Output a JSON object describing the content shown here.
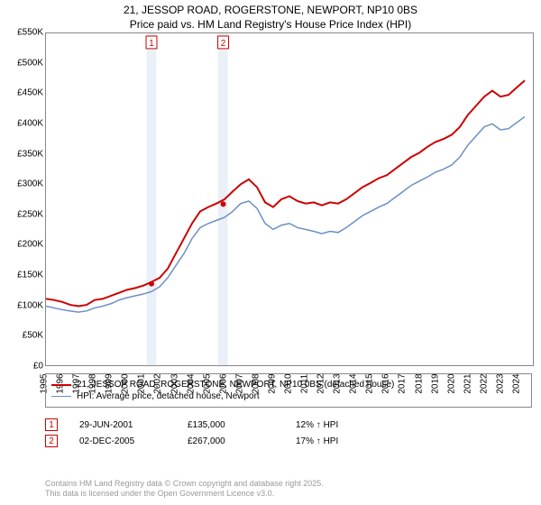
{
  "title_line1": "21, JESSOP ROAD, ROGERSTONE, NEWPORT, NP10 0BS",
  "title_line2": "Price paid vs. HM Land Registry's House Price Index (HPI)",
  "chart": {
    "type": "line",
    "background_color": "#ffffff",
    "plot_border_color": "#888888",
    "band_color": "#eaf0f8",
    "series": [
      {
        "name": "price_paid",
        "legend": "21, JESSOP ROAD, ROGERSTONE, NEWPORT, NP10 0BS (detached house)",
        "color": "#cc0000",
        "line_width": 2,
        "data": [
          [
            1995,
            110000
          ],
          [
            1995.5,
            108000
          ],
          [
            1996,
            105000
          ],
          [
            1996.5,
            100000
          ],
          [
            1997,
            98000
          ],
          [
            1997.5,
            100000
          ],
          [
            1998,
            108000
          ],
          [
            1998.5,
            110000
          ],
          [
            1999,
            115000
          ],
          [
            1999.5,
            120000
          ],
          [
            2000,
            125000
          ],
          [
            2000.5,
            128000
          ],
          [
            2001,
            132000
          ],
          [
            2001.5,
            138000
          ],
          [
            2002,
            145000
          ],
          [
            2002.5,
            160000
          ],
          [
            2003,
            185000
          ],
          [
            2003.5,
            210000
          ],
          [
            2004,
            235000
          ],
          [
            2004.5,
            255000
          ],
          [
            2005,
            262000
          ],
          [
            2005.5,
            268000
          ],
          [
            2006,
            275000
          ],
          [
            2006.5,
            288000
          ],
          [
            2007,
            300000
          ],
          [
            2007.5,
            308000
          ],
          [
            2008,
            295000
          ],
          [
            2008.5,
            270000
          ],
          [
            2009,
            262000
          ],
          [
            2009.5,
            275000
          ],
          [
            2010,
            280000
          ],
          [
            2010.5,
            272000
          ],
          [
            2011,
            268000
          ],
          [
            2011.5,
            270000
          ],
          [
            2012,
            265000
          ],
          [
            2012.5,
            270000
          ],
          [
            2013,
            268000
          ],
          [
            2013.5,
            275000
          ],
          [
            2014,
            285000
          ],
          [
            2014.5,
            295000
          ],
          [
            2015,
            302000
          ],
          [
            2015.5,
            310000
          ],
          [
            2016,
            315000
          ],
          [
            2016.5,
            325000
          ],
          [
            2017,
            335000
          ],
          [
            2017.5,
            345000
          ],
          [
            2018,
            352000
          ],
          [
            2018.5,
            362000
          ],
          [
            2019,
            370000
          ],
          [
            2019.5,
            375000
          ],
          [
            2020,
            382000
          ],
          [
            2020.5,
            395000
          ],
          [
            2021,
            415000
          ],
          [
            2021.5,
            430000
          ],
          [
            2022,
            445000
          ],
          [
            2022.5,
            455000
          ],
          [
            2023,
            445000
          ],
          [
            2023.5,
            448000
          ],
          [
            2024,
            460000
          ],
          [
            2024.5,
            472000
          ]
        ]
      },
      {
        "name": "hpi",
        "legend": "HPI: Average price, detached house, Newport",
        "color": "#6a8fc4",
        "line_width": 1.5,
        "data": [
          [
            1995,
            98000
          ],
          [
            1995.5,
            95000
          ],
          [
            1996,
            92000
          ],
          [
            1996.5,
            90000
          ],
          [
            1997,
            88000
          ],
          [
            1997.5,
            90000
          ],
          [
            1998,
            95000
          ],
          [
            1998.5,
            98000
          ],
          [
            1999,
            102000
          ],
          [
            1999.5,
            108000
          ],
          [
            2000,
            112000
          ],
          [
            2000.5,
            115000
          ],
          [
            2001,
            118000
          ],
          [
            2001.5,
            122000
          ],
          [
            2002,
            130000
          ],
          [
            2002.5,
            145000
          ],
          [
            2003,
            165000
          ],
          [
            2003.5,
            185000
          ],
          [
            2004,
            210000
          ],
          [
            2004.5,
            228000
          ],
          [
            2005,
            235000
          ],
          [
            2005.5,
            240000
          ],
          [
            2006,
            245000
          ],
          [
            2006.5,
            255000
          ],
          [
            2007,
            268000
          ],
          [
            2007.5,
            272000
          ],
          [
            2008,
            260000
          ],
          [
            2008.5,
            235000
          ],
          [
            2009,
            225000
          ],
          [
            2009.5,
            232000
          ],
          [
            2010,
            235000
          ],
          [
            2010.5,
            228000
          ],
          [
            2011,
            225000
          ],
          [
            2011.5,
            222000
          ],
          [
            2012,
            218000
          ],
          [
            2012.5,
            222000
          ],
          [
            2013,
            220000
          ],
          [
            2013.5,
            228000
          ],
          [
            2014,
            238000
          ],
          [
            2014.5,
            248000
          ],
          [
            2015,
            255000
          ],
          [
            2015.5,
            262000
          ],
          [
            2016,
            268000
          ],
          [
            2016.5,
            278000
          ],
          [
            2017,
            288000
          ],
          [
            2017.5,
            298000
          ],
          [
            2018,
            305000
          ],
          [
            2018.5,
            312000
          ],
          [
            2019,
            320000
          ],
          [
            2019.5,
            325000
          ],
          [
            2020,
            332000
          ],
          [
            2020.5,
            345000
          ],
          [
            2021,
            365000
          ],
          [
            2021.5,
            380000
          ],
          [
            2022,
            395000
          ],
          [
            2022.5,
            400000
          ],
          [
            2023,
            390000
          ],
          [
            2023.5,
            392000
          ],
          [
            2024,
            402000
          ],
          [
            2024.5,
            412000
          ]
        ]
      }
    ],
    "x_axis": {
      "min": 1995,
      "max": 2025,
      "ticks": [
        1995,
        1996,
        1997,
        1998,
        1999,
        2000,
        2001,
        2002,
        2003,
        2004,
        2005,
        2006,
        2007,
        2008,
        2009,
        2010,
        2011,
        2012,
        2013,
        2014,
        2015,
        2016,
        2017,
        2018,
        2019,
        2020,
        2021,
        2022,
        2023,
        2024
      ]
    },
    "y_axis": {
      "min": 0,
      "max": 550000,
      "ticks": [
        0,
        50000,
        100000,
        150000,
        200000,
        250000,
        300000,
        350000,
        400000,
        450000,
        500000,
        550000
      ],
      "labels": [
        "£0",
        "£50K",
        "£100K",
        "£150K",
        "£200K",
        "£250K",
        "£300K",
        "£350K",
        "£400K",
        "£450K",
        "£500K",
        "£550K"
      ]
    },
    "bands": [
      {
        "from": 2001.2,
        "to": 2001.8
      },
      {
        "from": 2005.6,
        "to": 2006.2
      }
    ],
    "markers": [
      {
        "id": "1",
        "x": 2001.5,
        "y": 135000
      },
      {
        "id": "2",
        "x": 2005.92,
        "y": 267000
      }
    ]
  },
  "sales": [
    {
      "id": "1",
      "date": "29-JUN-2001",
      "price": "£135,000",
      "vs_hpi": "12% ↑ HPI"
    },
    {
      "id": "2",
      "date": "02-DEC-2005",
      "price": "£267,000",
      "vs_hpi": "17% ↑ HPI"
    }
  ],
  "footer_line1": "Contains HM Land Registry data © Crown copyright and database right 2025.",
  "footer_line2": "This data is licensed under the Open Government Licence v3.0."
}
